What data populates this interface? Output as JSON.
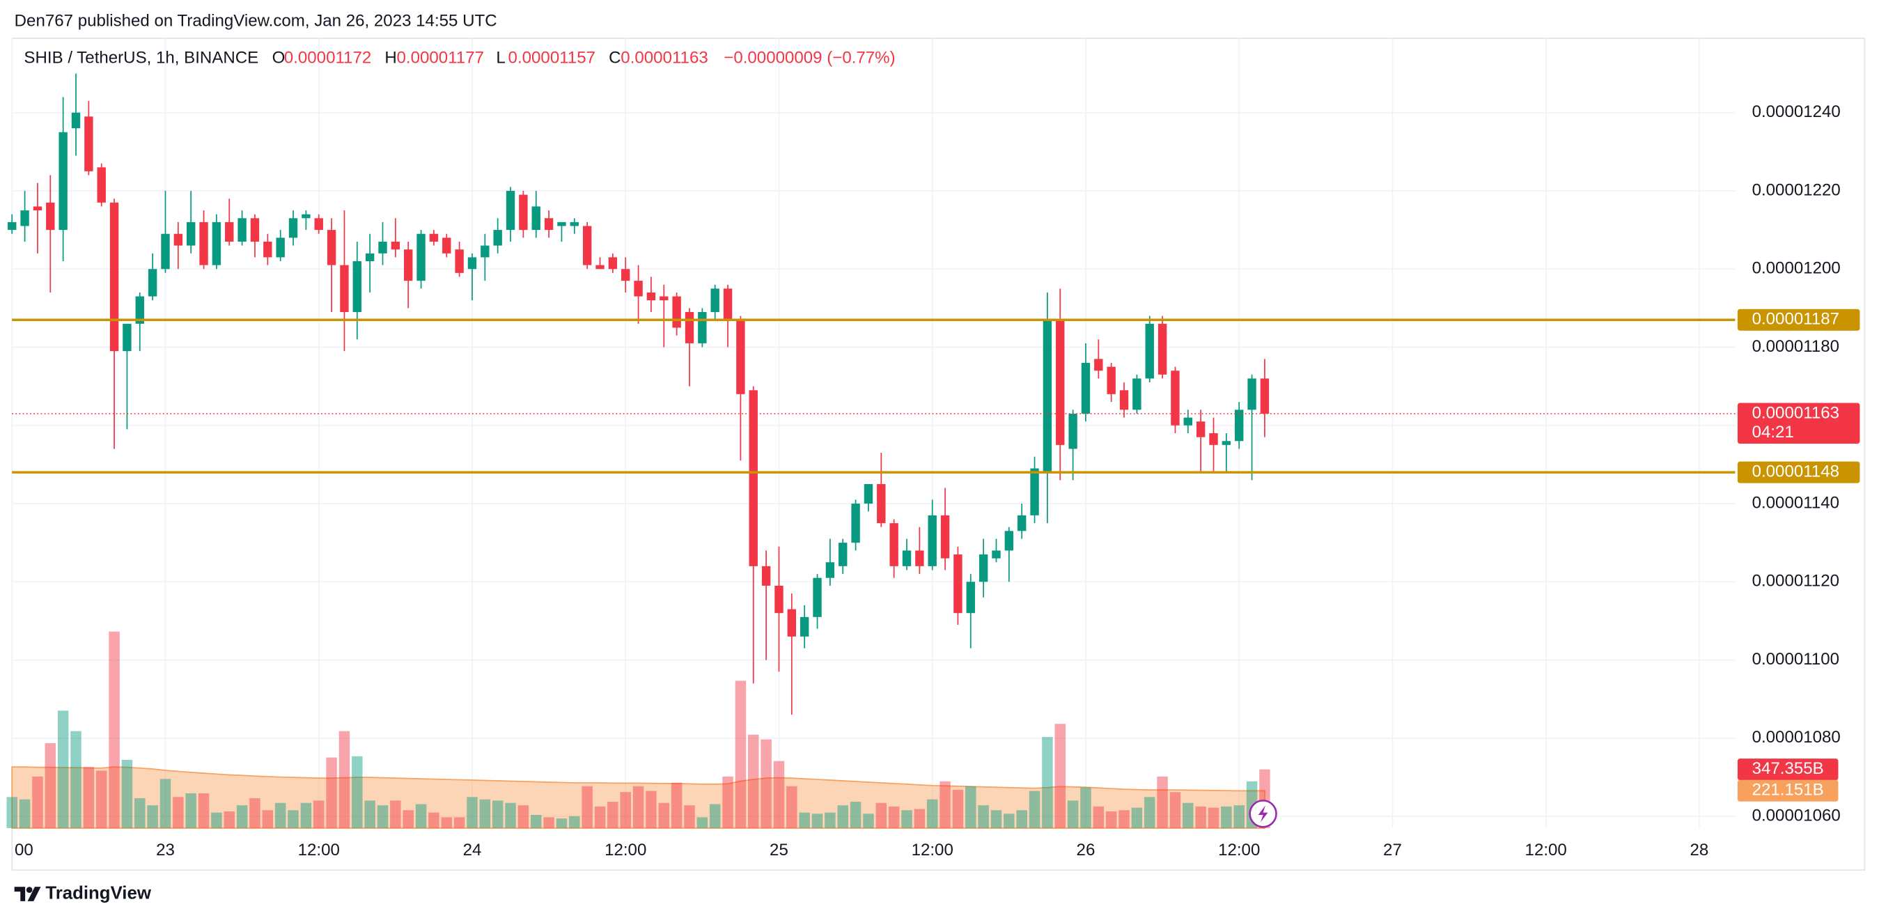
{
  "chart_data": {
    "type": "candlestick",
    "header": "Den767 published on TradingView.com, Jan 26, 2023 14:55 UTC",
    "symbol": "SHIB / TetherUS, 1h, BINANCE",
    "ohlc_legend": {
      "labels": [
        "O",
        "H",
        "L",
        "C"
      ],
      "values": [
        1.172e-05,
        1.177e-05,
        1.157e-05,
        1.163e-05
      ],
      "change": "−0.00000009 (−0.77%)"
    },
    "up_color": "#089981",
    "down_color": "#f23645",
    "open": [
      1.21e-05,
      1.211e-05,
      1.216e-05,
      1.217e-05,
      1.21e-05,
      1.236e-05,
      1.239e-05,
      1.226e-05,
      1.217e-05,
      1.179e-05,
      1.186e-05,
      1.193e-05,
      1.2e-05,
      1.209e-05,
      1.206e-05,
      1.212e-05,
      1.201e-05,
      1.212e-05,
      1.207e-05,
      1.213e-05,
      1.207e-05,
      1.203e-05,
      1.208e-05,
      1.213e-05,
      1.213e-05,
      1.21e-05,
      1.201e-05,
      1.189e-05,
      1.202e-05,
      1.204e-05,
      1.207e-05,
      1.205e-05,
      1.197e-05,
      1.209e-05,
      1.208e-05,
      1.205e-05,
      1.2e-05,
      1.203e-05,
      1.206e-05,
      1.21e-05,
      1.219e-05,
      1.21e-05,
      1.213e-05,
      1.211e-05,
      1.211e-05,
      1.211e-05,
      1.201e-05,
      1.203e-05,
      1.2e-05,
      1.197e-05,
      1.194e-05,
      1.193e-05,
      1.193e-05,
      1.189e-05,
      1.181e-05,
      1.189e-05,
      1.195e-05,
      1.187e-05,
      1.169e-05,
      1.124e-05,
      1.119e-05,
      1.113e-05,
      1.106e-05,
      1.111e-05,
      1.121e-05,
      1.124e-05,
      1.13e-05,
      1.14e-05,
      1.145e-05,
      1.135e-05,
      1.124e-05,
      1.128e-05,
      1.124e-05,
      1.137e-05,
      1.127e-05,
      1.112e-05,
      1.12e-05,
      1.126e-05,
      1.128e-05,
      1.133e-05,
      1.137e-05,
      1.148e-05,
      1.187e-05,
      1.154e-05,
      1.163e-05,
      1.177e-05,
      1.175e-05,
      1.169e-05,
      1.164e-05,
      1.172e-05,
      1.186e-05,
      1.174e-05,
      1.16e-05,
      1.161e-05,
      1.158e-05,
      1.155e-05,
      1.156e-05,
      1.164e-05,
      1.172e-05
    ],
    "high": [
      1.214e-05,
      1.22e-05,
      1.222e-05,
      1.224e-05,
      1.244e-05,
      1.25e-05,
      1.243e-05,
      1.227e-05,
      1.218e-05,
      1.186e-05,
      1.194e-05,
      1.204e-05,
      1.22e-05,
      1.212e-05,
      1.22e-05,
      1.215e-05,
      1.214e-05,
      1.218e-05,
      1.215e-05,
      1.214e-05,
      1.209e-05,
      1.21e-05,
      1.215e-05,
      1.215e-05,
      1.214e-05,
      1.213e-05,
      1.215e-05,
      1.207e-05,
      1.209e-05,
      1.212e-05,
      1.213e-05,
      1.207e-05,
      1.21e-05,
      1.21e-05,
      1.209e-05,
      1.207e-05,
      1.204e-05,
      1.209e-05,
      1.213e-05,
      1.221e-05,
      1.22e-05,
      1.22e-05,
      1.215e-05,
      1.212e-05,
      1.213e-05,
      1.212e-05,
      1.203e-05,
      1.204e-05,
      1.203e-05,
      1.201e-05,
      1.198e-05,
      1.196e-05,
      1.194e-05,
      1.19e-05,
      1.19e-05,
      1.196e-05,
      1.196e-05,
      1.188e-05,
      1.17e-05,
      1.128e-05,
      1.129e-05,
      1.117e-05,
      1.114e-05,
      1.122e-05,
      1.131e-05,
      1.131e-05,
      1.141e-05,
      1.145e-05,
      1.153e-05,
      1.136e-05,
      1.131e-05,
      1.134e-05,
      1.141e-05,
      1.144e-05,
      1.129e-05,
      1.122e-05,
      1.131e-05,
      1.131e-05,
      1.134e-05,
      1.14e-05,
      1.152e-05,
      1.194e-05,
      1.195e-05,
      1.164e-05,
      1.181e-05,
      1.182e-05,
      1.176e-05,
      1.171e-05,
      1.173e-05,
      1.188e-05,
      1.188e-05,
      1.175e-05,
      1.164e-05,
      1.164e-05,
      1.162e-05,
      1.158e-05,
      1.166e-05,
      1.173e-05,
      1.177e-05
    ],
    "low": [
      1.209e-05,
      1.207e-05,
      1.204e-05,
      1.194e-05,
      1.202e-05,
      1.229e-05,
      1.224e-05,
      1.216e-05,
      1.154e-05,
      1.159e-05,
      1.179e-05,
      1.192e-05,
      1.199e-05,
      1.2e-05,
      1.204e-05,
      1.2e-05,
      1.2e-05,
      1.206e-05,
      1.206e-05,
      1.203e-05,
      1.201e-05,
      1.202e-05,
      1.206e-05,
      1.21e-05,
      1.209e-05,
      1.189e-05,
      1.179e-05,
      1.182e-05,
      1.194e-05,
      1.201e-05,
      1.203e-05,
      1.19e-05,
      1.195e-05,
      1.206e-05,
      1.203e-05,
      1.198e-05,
      1.192e-05,
      1.197e-05,
      1.204e-05,
      1.207e-05,
      1.208e-05,
      1.208e-05,
      1.208e-05,
      1.207e-05,
      1.209e-05,
      1.2e-05,
      1.2e-05,
      1.199e-05,
      1.194e-05,
      1.186e-05,
      1.189e-05,
      1.18e-05,
      1.183e-05,
      1.17e-05,
      1.18e-05,
      1.187e-05,
      1.18e-05,
      1.151e-05,
      1.094e-05,
      1.1e-05,
      1.097e-05,
      1.086e-05,
      1.103e-05,
      1.108e-05,
      1.119e-05,
      1.122e-05,
      1.128e-05,
      1.138e-05,
      1.134e-05,
      1.121e-05,
      1.123e-05,
      1.122e-05,
      1.123e-05,
      1.123e-05,
      1.109e-05,
      1.103e-05,
      1.116e-05,
      1.125e-05,
      1.12e-05,
      1.131e-05,
      1.135e-05,
      1.135e-05,
      1.146e-05,
      1.146e-05,
      1.161e-05,
      1.172e-05,
      1.166e-05,
      1.162e-05,
      1.163e-05,
      1.171e-05,
      1.172e-05,
      1.158e-05,
      1.158e-05,
      1.148e-05,
      1.148e-05,
      1.148e-05,
      1.154e-05,
      1.146e-05,
      1.157e-05
    ],
    "close": [
      1.212e-05,
      1.215e-05,
      1.215e-05,
      1.21e-05,
      1.235e-05,
      1.24e-05,
      1.225e-05,
      1.217e-05,
      1.179e-05,
      1.186e-05,
      1.193e-05,
      1.2e-05,
      1.209e-05,
      1.206e-05,
      1.212e-05,
      1.201e-05,
      1.212e-05,
      1.207e-05,
      1.213e-05,
      1.207e-05,
      1.203e-05,
      1.208e-05,
      1.213e-05,
      1.214e-05,
      1.21e-05,
      1.201e-05,
      1.189e-05,
      1.202e-05,
      1.204e-05,
      1.207e-05,
      1.205e-05,
      1.197e-05,
      1.209e-05,
      1.207e-05,
      1.204e-05,
      1.199e-05,
      1.203e-05,
      1.206e-05,
      1.21e-05,
      1.22e-05,
      1.21e-05,
      1.216e-05,
      1.21e-05,
      1.212e-05,
      1.212e-05,
      1.201e-05,
      1.2e-05,
      1.2e-05,
      1.197e-05,
      1.193e-05,
      1.192e-05,
      1.192e-05,
      1.185e-05,
      1.181e-05,
      1.189e-05,
      1.195e-05,
      1.187e-05,
      1.168e-05,
      1.124e-05,
      1.119e-05,
      1.112e-05,
      1.106e-05,
      1.111e-05,
      1.121e-05,
      1.125e-05,
      1.13e-05,
      1.14e-05,
      1.145e-05,
      1.135e-05,
      1.124e-05,
      1.128e-05,
      1.124e-05,
      1.137e-05,
      1.126e-05,
      1.112e-05,
      1.12e-05,
      1.127e-05,
      1.128e-05,
      1.133e-05,
      1.137e-05,
      1.149e-05,
      1.187e-05,
      1.155e-05,
      1.163e-05,
      1.176e-05,
      1.174e-05,
      1.168e-05,
      1.164e-05,
      1.172e-05,
      1.186e-05,
      1.173e-05,
      1.16e-05,
      1.162e-05,
      1.157e-05,
      1.155e-05,
      1.156e-05,
      1.164e-05,
      1.172e-05,
      1.163e-05
    ],
    "volume": [
      184,
      170,
      305,
      503,
      695,
      574,
      362,
      340,
      1163,
      404,
      177,
      135,
      291,
      184,
      206,
      206,
      92,
      99,
      135,
      177,
      106,
      149,
      106,
      149,
      163,
      418,
      574,
      425,
      163,
      135,
      163,
      106,
      142,
      92,
      64,
      64,
      184,
      170,
      163,
      149,
      135,
      78,
      64,
      57,
      71,
      248,
      128,
      156,
      213,
      248,
      220,
      149,
      269,
      135,
      64,
      142,
      305,
      872,
      553,
      525,
      397,
      248,
      92,
      85,
      92,
      135,
      156,
      85,
      149,
      128,
      106,
      113,
      170,
      277,
      227,
      248,
      135,
      106,
      85,
      106,
      220,
      539,
      617,
      163,
      241,
      128,
      99,
      106,
      121,
      184,
      305,
      213,
      149,
      128,
      121,
      128,
      135,
      277,
      347.355
    ],
    "volume_ma": [
      362,
      362,
      360,
      360,
      358,
      358,
      356,
      355,
      362,
      360,
      355,
      350,
      342,
      336,
      330,
      325,
      320,
      315,
      312,
      308,
      305,
      302,
      300,
      298,
      296,
      296,
      298,
      300,
      300,
      298,
      296,
      294,
      292,
      290,
      288,
      286,
      284,
      282,
      280,
      278,
      276,
      274,
      272,
      270,
      268,
      268,
      268,
      266,
      266,
      266,
      265,
      264,
      264,
      262,
      260,
      260,
      262,
      278,
      288,
      296,
      298,
      296,
      292,
      288,
      284,
      280,
      276,
      272,
      268,
      264,
      260,
      256,
      252,
      250,
      248,
      246,
      244,
      242,
      240,
      238,
      236,
      240,
      246,
      244,
      242,
      238,
      234,
      230,
      228,
      226,
      226,
      226,
      225,
      224,
      223,
      222,
      221,
      221,
      221.151
    ],
    "volume_ma_color": "#f7a15d",
    "volume_tags": [
      {
        "value": 347.355,
        "label": "347.355B",
        "color": "#f23645"
      },
      {
        "value": 221.151,
        "label": "221.151B",
        "color": "#f7a15d"
      }
    ],
    "levels": [
      {
        "value": 1.187e-05,
        "color": "#c99400"
      },
      {
        "value": 1.148e-05,
        "color": "#c99400"
      }
    ],
    "last_price": {
      "value": 1.163e-05,
      "countdown": "04:21",
      "color": "#f23645"
    },
    "ylim": [
      1.057e-05,
      1.259e-05
    ],
    "yticks": [
      {
        "value": 1.06e-05,
        "label": "0.00001060"
      },
      {
        "value": 1.08e-05,
        "label": "0.00001080"
      },
      {
        "value": 1.1e-05,
        "label": "0.00001100"
      },
      {
        "value": 1.12e-05,
        "label": "0.00001120"
      },
      {
        "value": 1.14e-05,
        "label": "0.00001140"
      },
      {
        "value": 1.16e-05,
        "label": "0.00001160"
      },
      {
        "value": 1.18e-05,
        "label": "0.00001180"
      },
      {
        "value": 1.2e-05,
        "label": "0.00001200"
      },
      {
        "value": 1.22e-05,
        "label": "0.00001220"
      },
      {
        "value": 1.24e-05,
        "label": "0.00001240"
      }
    ],
    "xticks": [
      "00",
      "23",
      "12:00",
      "24",
      "12:00",
      "25",
      "12:00",
      "26",
      "12:00",
      "27",
      "12:00",
      "28"
    ],
    "grid": true,
    "brand": "TradingView"
  }
}
